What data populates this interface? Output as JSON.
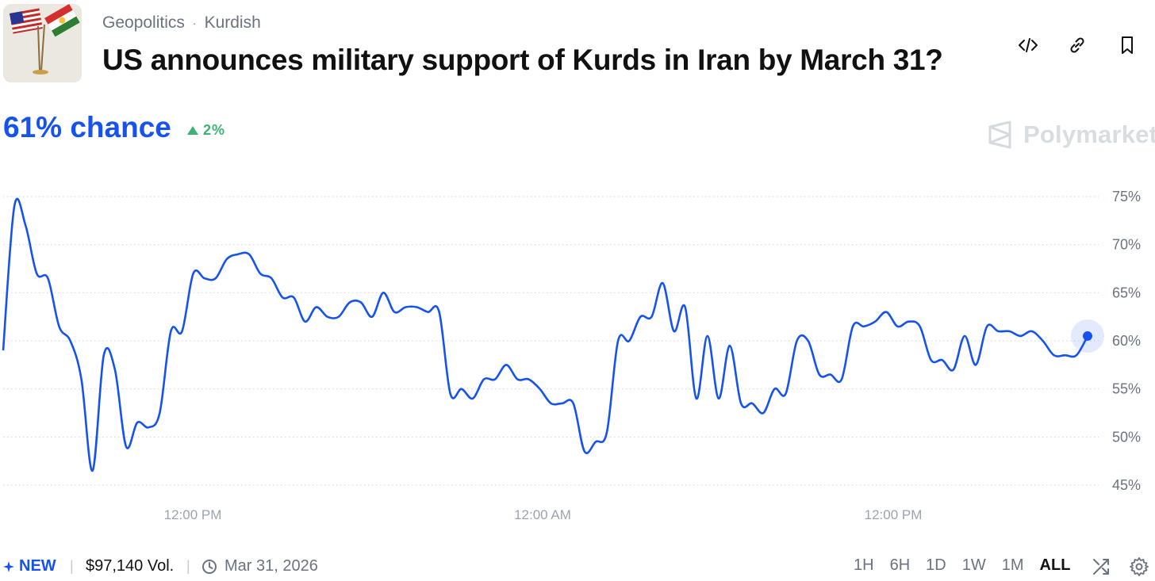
{
  "header": {
    "breadcrumb": [
      "Geopolitics",
      "Kurdish"
    ],
    "breadcrumb_sep": "·",
    "title": "US announces military support of Kurds in Iran by March 31?",
    "actions": [
      "embed-icon",
      "link-icon",
      "bookmark-icon"
    ]
  },
  "market": {
    "chance_text": "61% chance",
    "change_text": "2%",
    "brand": "Polymarket",
    "accent_color": "#1652f0",
    "up_color": "#3cb371"
  },
  "chart_data": {
    "type": "line",
    "ylim": [
      45,
      75
    ],
    "yticks": [
      "75%",
      "70%",
      "65%",
      "60%",
      "55%",
      "50%",
      "45%"
    ],
    "xticks": [
      "12:00 PM",
      "12:00 AM",
      "12:00 PM"
    ],
    "grid": true,
    "line_color": "#1652f0",
    "series": [
      {
        "values": [
          59,
          74,
          72,
          67,
          66.5,
          61.5,
          60,
          56,
          46.5,
          58.5,
          57,
          49,
          51.5,
          51,
          52.5,
          61,
          61,
          67,
          66.5,
          66.5,
          68.5,
          69,
          69,
          67,
          66.5,
          64.5,
          64.5,
          62,
          63.5,
          62.5,
          62.5,
          64,
          64,
          62.5,
          65,
          63,
          63.5,
          63.5,
          63,
          63,
          54.5,
          55,
          54,
          56,
          56,
          57.5,
          56,
          56,
          55,
          53.5,
          53.5,
          53.5,
          48.5,
          49.5,
          50.5,
          60,
          60,
          62.5,
          62.5,
          66,
          61,
          63.5,
          54,
          60.5,
          54,
          59.5,
          53.5,
          53.5,
          52.5,
          55,
          54.5,
          60,
          60,
          56.5,
          56.5,
          56,
          61.5,
          61.5,
          62,
          63,
          61.5,
          62,
          61.5,
          58,
          58,
          57,
          60.5,
          57.5,
          61.5,
          61,
          61,
          60.5,
          61,
          60,
          58.5,
          58.5,
          58.5,
          60.5
        ]
      }
    ],
    "current_value": 60.5
  },
  "footer": {
    "new_label": "NEW",
    "volume": "$97,140 Vol.",
    "date": "Mar 31, 2026",
    "ranges": [
      "1H",
      "6H",
      "1D",
      "1W",
      "1M",
      "ALL"
    ],
    "active_range": "ALL"
  }
}
